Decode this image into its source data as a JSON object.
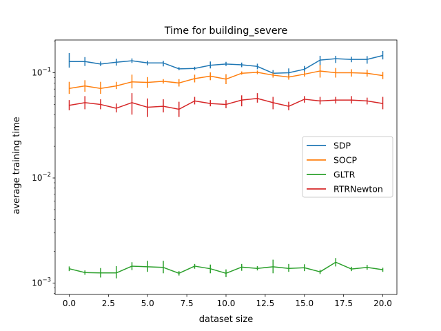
{
  "chart_data": {
    "type": "line",
    "title": "Time for building_severe",
    "xlabel": "dataset size",
    "ylabel": "average training time",
    "xlim": [
      -0.9,
      20.9
    ],
    "ylim": [
      0.00078,
      0.205
    ],
    "yscale": "log",
    "grid": false,
    "legend_position": "center-right",
    "x_ticks": [
      0.0,
      2.5,
      5.0,
      7.5,
      10.0,
      12.5,
      15.0,
      17.5,
      20.0
    ],
    "x_tick_labels": [
      "0.0",
      "2.5",
      "5.0",
      "7.5",
      "10.0",
      "12.5",
      "15.0",
      "17.5",
      "20.0"
    ],
    "y_ticks": [
      0.001,
      0.01,
      0.1
    ],
    "y_tick_bases": [
      "10",
      "10",
      "10"
    ],
    "y_tick_exponents": [
      "−3",
      "−2",
      "−1"
    ],
    "x": [
      0,
      1,
      2,
      3,
      4,
      5,
      6,
      7,
      8,
      9,
      10,
      11,
      12,
      13,
      14,
      15,
      16,
      17,
      18,
      19,
      20
    ],
    "series": [
      {
        "name": "SDP",
        "color": "#1f77b4",
        "values": [
          0.128,
          0.128,
          0.121,
          0.126,
          0.13,
          0.124,
          0.124,
          0.109,
          0.11,
          0.118,
          0.121,
          0.119,
          0.115,
          0.099,
          0.1,
          0.108,
          0.132,
          0.136,
          0.134,
          0.134,
          0.146
        ],
        "err_low": [
          0.112,
          0.116,
          0.116,
          0.117,
          0.124,
          0.118,
          0.115,
          0.106,
          0.106,
          0.11,
          0.116,
          0.113,
          0.108,
          0.092,
          0.091,
          0.1,
          0.118,
          0.124,
          0.126,
          0.122,
          0.134
        ],
        "err_high": [
          0.154,
          0.141,
          0.128,
          0.136,
          0.137,
          0.13,
          0.13,
          0.113,
          0.114,
          0.128,
          0.127,
          0.125,
          0.122,
          0.106,
          0.11,
          0.116,
          0.145,
          0.145,
          0.142,
          0.144,
          0.161
        ]
      },
      {
        "name": "SOCP",
        "color": "#ff7f0e",
        "values": [
          0.071,
          0.075,
          0.071,
          0.075,
          0.082,
          0.081,
          0.083,
          0.08,
          0.088,
          0.093,
          0.087,
          0.099,
          0.101,
          0.095,
          0.091,
          0.097,
          0.104,
          0.1,
          0.1,
          0.099,
          0.094
        ],
        "err_low": [
          0.063,
          0.066,
          0.063,
          0.07,
          0.071,
          0.072,
          0.079,
          0.074,
          0.081,
          0.085,
          0.078,
          0.096,
          0.097,
          0.09,
          0.086,
          0.092,
          0.09,
          0.09,
          0.092,
          0.092,
          0.087
        ],
        "err_high": [
          0.082,
          0.085,
          0.082,
          0.082,
          0.096,
          0.091,
          0.087,
          0.087,
          0.096,
          0.101,
          0.097,
          0.103,
          0.105,
          0.1,
          0.096,
          0.103,
          0.119,
          0.111,
          0.108,
          0.107,
          0.102
        ]
      },
      {
        "name": "GLTR",
        "color": "#2ca02c",
        "values": [
          0.00137,
          0.00126,
          0.00125,
          0.00125,
          0.00145,
          0.00143,
          0.00141,
          0.00124,
          0.00145,
          0.00137,
          0.00124,
          0.00142,
          0.00138,
          0.00143,
          0.00138,
          0.0014,
          0.00128,
          0.00158,
          0.00136,
          0.00141,
          0.00134
        ],
        "err_low": [
          0.0013,
          0.0012,
          0.00113,
          0.00111,
          0.00133,
          0.00128,
          0.00124,
          0.00118,
          0.00137,
          0.00124,
          0.00114,
          0.00131,
          0.00132,
          0.00124,
          0.00128,
          0.0013,
          0.00122,
          0.00144,
          0.0013,
          0.00134,
          0.00128
        ],
        "err_high": [
          0.00144,
          0.00132,
          0.00139,
          0.00145,
          0.00158,
          0.00163,
          0.00163,
          0.0013,
          0.00152,
          0.0015,
          0.00135,
          0.00152,
          0.00145,
          0.00167,
          0.00152,
          0.00151,
          0.00134,
          0.00173,
          0.00143,
          0.00149,
          0.0014
        ]
      },
      {
        "name": "RTRNewton",
        "color": "#d62728",
        "values": [
          0.049,
          0.052,
          0.05,
          0.046,
          0.052,
          0.047,
          0.048,
          0.045,
          0.054,
          0.051,
          0.05,
          0.055,
          0.057,
          0.052,
          0.048,
          0.056,
          0.054,
          0.055,
          0.055,
          0.054,
          0.051
        ],
        "err_low": [
          0.044,
          0.045,
          0.045,
          0.042,
          0.04,
          0.038,
          0.042,
          0.038,
          0.05,
          0.048,
          0.046,
          0.048,
          0.052,
          0.045,
          0.044,
          0.052,
          0.05,
          0.051,
          0.051,
          0.05,
          0.045
        ],
        "err_high": [
          0.055,
          0.06,
          0.056,
          0.051,
          0.064,
          0.057,
          0.056,
          0.053,
          0.059,
          0.055,
          0.055,
          0.061,
          0.064,
          0.059,
          0.053,
          0.06,
          0.059,
          0.059,
          0.06,
          0.058,
          0.059
        ]
      }
    ]
  }
}
